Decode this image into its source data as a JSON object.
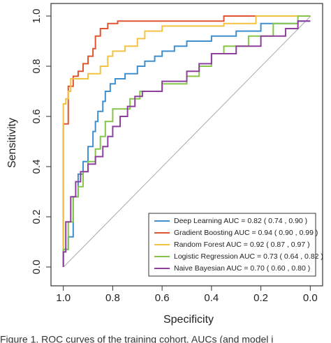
{
  "chart_data": {
    "type": "line",
    "x_label": "Specificity",
    "y_label": "Sensitivity",
    "caption": "Figure 1. ROC curves of the training cohort. AUCs (and model i",
    "xlim": [
      1.05,
      -0.05
    ],
    "ylim": [
      -0.075,
      1.05
    ],
    "xticks": [
      {
        "value": 1,
        "label": "1.0"
      },
      0.8,
      0.6,
      0.4,
      0.2,
      {
        "value": 0,
        "label": "0.0"
      }
    ],
    "yticks": [
      {
        "value": 0,
        "label": "0.0"
      },
      0.2,
      0.4,
      0.6,
      0.8,
      {
        "value": 1,
        "label": "1.0"
      }
    ],
    "legend": "bottom-right",
    "series": [
      {
        "name": "Deep Learning AUC = 0.82 ( 0.74 , 0.90 )",
        "color": "#3f8fcf",
        "x": [
          1,
          1,
          0.98,
          0.98,
          0.96,
          0.96,
          0.94,
          0.94,
          0.92,
          0.92,
          0.9,
          0.9,
          0.88,
          0.88,
          0.87,
          0.87,
          0.86,
          0.86,
          0.84,
          0.84,
          0.83,
          0.83,
          0.81,
          0.81,
          0.79,
          0.79,
          0.75,
          0.75,
          0.7,
          0.7,
          0.67,
          0.67,
          0.63,
          0.63,
          0.6,
          0.6,
          0.55,
          0.55,
          0.5,
          0.5,
          0.4,
          0.4,
          0.3,
          0.3,
          0.2,
          0.2,
          0.05,
          0.05,
          0
        ],
        "values": [
          0,
          0.07,
          0.07,
          0.12,
          0.12,
          0.28,
          0.28,
          0.37,
          0.37,
          0.42,
          0.42,
          0.48,
          0.48,
          0.54,
          0.54,
          0.58,
          0.58,
          0.62,
          0.62,
          0.66,
          0.66,
          0.7,
          0.7,
          0.73,
          0.73,
          0.75,
          0.75,
          0.77,
          0.77,
          0.8,
          0.8,
          0.82,
          0.82,
          0.84,
          0.84,
          0.86,
          0.86,
          0.88,
          0.88,
          0.9,
          0.9,
          0.92,
          0.92,
          0.94,
          0.94,
          0.97,
          0.97,
          0.98,
          0.98
        ]
      },
      {
        "name": "Gradient Boosting AUC = 0.94 ( 0.90 , 0.99 )",
        "color": "#e0552f",
        "x": [
          1,
          1,
          0.98,
          0.98,
          0.96,
          0.96,
          0.94,
          0.94,
          0.92,
          0.92,
          0.9,
          0.9,
          0.88,
          0.88,
          0.87,
          0.87,
          0.85,
          0.85,
          0.82,
          0.82,
          0.78,
          0.78,
          0.35,
          0.35,
          0
        ],
        "values": [
          0,
          0.57,
          0.57,
          0.72,
          0.72,
          0.76,
          0.76,
          0.78,
          0.78,
          0.81,
          0.81,
          0.84,
          0.84,
          0.87,
          0.87,
          0.92,
          0.92,
          0.95,
          0.95,
          0.97,
          0.97,
          0.98,
          0.98,
          1,
          1
        ]
      },
      {
        "name": "Random Forest AUC = 0.92 ( 0.87 , 0.97 )",
        "color": "#f2c240",
        "x": [
          1,
          1,
          0.99,
          0.99,
          0.98,
          0.98,
          0.97,
          0.97,
          0.9,
          0.9,
          0.85,
          0.85,
          0.82,
          0.82,
          0.8,
          0.8,
          0.75,
          0.75,
          0.7,
          0.7,
          0.67,
          0.67,
          0.6,
          0.6,
          0.35,
          0.35,
          0.22,
          0.22,
          0
        ],
        "values": [
          0,
          0.65,
          0.65,
          0.67,
          0.67,
          0.7,
          0.7,
          0.75,
          0.75,
          0.77,
          0.77,
          0.8,
          0.8,
          0.84,
          0.84,
          0.86,
          0.86,
          0.88,
          0.88,
          0.91,
          0.91,
          0.94,
          0.94,
          0.96,
          0.96,
          0.97,
          0.97,
          1,
          1
        ]
      },
      {
        "name": "Logistic Regression AUC = 0.73 ( 0.64 , 0.82 )",
        "color": "#86c54a",
        "x": [
          1,
          1,
          0.98,
          0.98,
          0.96,
          0.96,
          0.94,
          0.94,
          0.92,
          0.92,
          0.9,
          0.9,
          0.87,
          0.87,
          0.85,
          0.85,
          0.83,
          0.83,
          0.8,
          0.8,
          0.73,
          0.73,
          0.69,
          0.69,
          0.6,
          0.6,
          0.5,
          0.5,
          0.45,
          0.45,
          0.4,
          0.4,
          0.35,
          0.35,
          0.25,
          0.25,
          0.15,
          0.15,
          0.05,
          0.05,
          0
        ],
        "values": [
          0,
          0.07,
          0.07,
          0.18,
          0.18,
          0.28,
          0.28,
          0.32,
          0.32,
          0.38,
          0.38,
          0.42,
          0.42,
          0.47,
          0.47,
          0.52,
          0.52,
          0.58,
          0.58,
          0.63,
          0.63,
          0.67,
          0.67,
          0.7,
          0.7,
          0.73,
          0.73,
          0.76,
          0.76,
          0.8,
          0.8,
          0.85,
          0.85,
          0.88,
          0.88,
          0.92,
          0.92,
          0.97,
          0.97,
          1,
          1
        ]
      },
      {
        "name": "Naive Bayesian AUC = 0.70 ( 0.60 , 0.80 )",
        "color": "#8e3f9e",
        "x": [
          1,
          1,
          0.99,
          0.99,
          0.97,
          0.97,
          0.95,
          0.95,
          0.93,
          0.93,
          0.9,
          0.9,
          0.87,
          0.87,
          0.84,
          0.84,
          0.82,
          0.82,
          0.8,
          0.8,
          0.77,
          0.77,
          0.74,
          0.74,
          0.71,
          0.71,
          0.68,
          0.68,
          0.6,
          0.6,
          0.5,
          0.5,
          0.45,
          0.45,
          0.4,
          0.4,
          0.3,
          0.3,
          0.2,
          0.2,
          0.1,
          0.1,
          0.05,
          0.05,
          0
        ],
        "values": [
          0,
          0.06,
          0.06,
          0.18,
          0.18,
          0.28,
          0.28,
          0.34,
          0.34,
          0.38,
          0.38,
          0.41,
          0.41,
          0.44,
          0.44,
          0.48,
          0.48,
          0.52,
          0.52,
          0.56,
          0.56,
          0.6,
          0.6,
          0.64,
          0.64,
          0.68,
          0.68,
          0.7,
          0.7,
          0.74,
          0.74,
          0.78,
          0.78,
          0.81,
          0.81,
          0.85,
          0.85,
          0.88,
          0.88,
          0.92,
          0.92,
          0.95,
          0.95,
          0.98,
          0.98
        ]
      }
    ]
  }
}
